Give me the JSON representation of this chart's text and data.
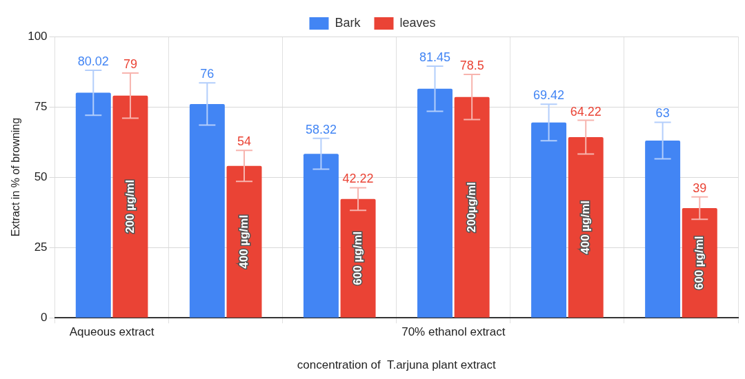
{
  "chart_data": {
    "type": "bar",
    "categories": [
      "Aqueous extract",
      null,
      null,
      "70% ethanol extract",
      null,
      null
    ],
    "series": [
      {
        "name": "Bark",
        "color": "#4285f4",
        "values": [
          80.02,
          76,
          58.32,
          81.45,
          69.42,
          63
        ],
        "errors": [
          8,
          7.5,
          5.5,
          8,
          6.5,
          6.5
        ]
      },
      {
        "name": "leaves",
        "color": "#ea4335",
        "values": [
          79,
          54,
          42.22,
          78.5,
          64.22,
          39
        ],
        "errors": [
          8,
          5.5,
          4,
          8,
          6,
          4
        ]
      }
    ],
    "xlabel": "concentration of  T.arjuna plant extract",
    "ylabel": "Extract in % of browning",
    "annotations": [
      "200 µg/ml",
      "400 µg/ml",
      "600 µg/ml",
      "200µg/ml",
      "400 µg/ml",
      "600 µg/ml"
    ],
    "ylim": [
      0,
      100
    ],
    "yticks": [
      0,
      25,
      50,
      75,
      100
    ],
    "grid": true,
    "legend": "top",
    "data_labels": true
  }
}
